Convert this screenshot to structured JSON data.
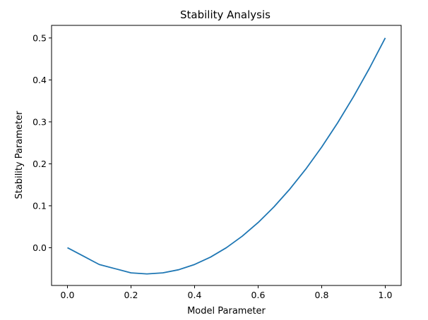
{
  "chart_data": {
    "type": "line",
    "title": "Stability Analysis",
    "xlabel": "Model Parameter",
    "ylabel": "Stability Parameter",
    "xlim": [
      -0.05,
      1.05
    ],
    "ylim": [
      -0.09,
      0.53
    ],
    "grid": false,
    "xticks": [
      0.0,
      0.2,
      0.4,
      0.6,
      0.8,
      1.0
    ],
    "xtick_labels": [
      "0.0",
      "0.2",
      "0.4",
      "0.6",
      "0.8",
      "1.0"
    ],
    "yticks": [
      0.0,
      0.1,
      0.2,
      0.3,
      0.4,
      0.5
    ],
    "ytick_labels": [
      "0.0",
      "0.1",
      "0.2",
      "0.3",
      "0.4",
      "0.5"
    ],
    "series": [
      {
        "color": "#1f77b4",
        "x": [
          0.0,
          0.05,
          0.1,
          0.15,
          0.2,
          0.25,
          0.3,
          0.35,
          0.4,
          0.45,
          0.5,
          0.55,
          0.6,
          0.65,
          0.7,
          0.75,
          0.8,
          0.85,
          0.9,
          0.95,
          1.0
        ],
        "y": [
          0.0,
          -0.02,
          -0.04,
          -0.05,
          -0.06,
          -0.0625,
          -0.06,
          -0.0525,
          -0.04,
          -0.0225,
          0.0,
          0.0275,
          0.06,
          0.0975,
          0.14,
          0.1875,
          0.24,
          0.2975,
          0.36,
          0.4275,
          0.5
        ]
      }
    ]
  }
}
